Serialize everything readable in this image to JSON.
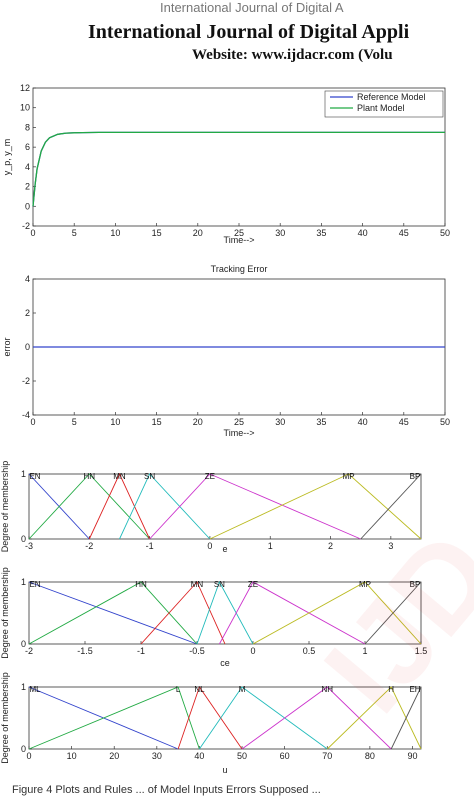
{
  "header": {
    "journal_banner": "International Journal of Digital A",
    "title": "International Journal of Digital Appli",
    "website": "Website: www.ijdacr.com (Volu"
  },
  "caption": "Figure 4 Plots and Rules ... of Model Inputs Errors Supposed ...",
  "chart_data": [
    {
      "type": "line",
      "title": "",
      "xlabel": "Time-->",
      "ylabel": "y_p, y_m",
      "xlim": [
        0,
        50
      ],
      "ylim": [
        -2,
        12
      ],
      "xticks": [
        0,
        5,
        10,
        15,
        20,
        25,
        30,
        35,
        40,
        45,
        50
      ],
      "yticks": [
        -2,
        0,
        2,
        4,
        6,
        8,
        10,
        12
      ],
      "legend": "top-right",
      "series": [
        {
          "name": "Reference Model",
          "color": "#3344cc",
          "x": [
            0,
            0.25,
            0.5,
            1,
            1.5,
            2,
            3,
            4,
            5,
            6,
            8,
            10,
            50
          ],
          "y": [
            0,
            2.2,
            3.8,
            5.6,
            6.5,
            6.95,
            7.3,
            7.42,
            7.46,
            7.48,
            7.5,
            7.5,
            7.5
          ]
        },
        {
          "name": "Plant Model",
          "color": "#22aa44",
          "x": [
            0,
            0.25,
            0.5,
            1,
            1.5,
            2,
            3,
            4,
            5,
            6,
            8,
            10,
            50
          ],
          "y": [
            0,
            2.2,
            3.8,
            5.6,
            6.5,
            6.95,
            7.3,
            7.42,
            7.46,
            7.48,
            7.5,
            7.5,
            7.5
          ]
        }
      ]
    },
    {
      "type": "line",
      "title": "Tracking Error",
      "xlabel": "Time-->",
      "ylabel": "error",
      "xlim": [
        0,
        50
      ],
      "ylim": [
        -4,
        4
      ],
      "xticks": [
        0,
        5,
        10,
        15,
        20,
        25,
        30,
        35,
        40,
        45,
        50
      ],
      "yticks": [
        -4,
        -2,
        0,
        2,
        4
      ],
      "series": [
        {
          "color": "#3344cc",
          "x": [
            0,
            50
          ],
          "y": [
            0,
            0
          ]
        }
      ]
    },
    {
      "type": "line",
      "title": "",
      "xlabel": "e",
      "ylabel": "Degree of membership",
      "xlim": [
        -3,
        3.5
      ],
      "ylim": [
        0,
        1
      ],
      "xticks": [
        -3,
        -2,
        -1,
        0,
        1,
        2,
        3
      ],
      "series": [
        {
          "name": "EN",
          "color": "#3344cc",
          "x": [
            -3,
            -2
          ],
          "y": [
            1,
            0
          ]
        },
        {
          "name": "HN",
          "color": "#22aa44",
          "x": [
            -3,
            -2,
            -1
          ],
          "y": [
            0,
            1,
            0
          ]
        },
        {
          "name": "MN",
          "color": "#dd2222",
          "x": [
            -2,
            -1.5,
            -1
          ],
          "y": [
            0,
            1,
            0
          ]
        },
        {
          "name": "SN",
          "color": "#22bbbb",
          "x": [
            -1.5,
            -1,
            0
          ],
          "y": [
            0,
            1,
            0
          ]
        },
        {
          "name": "ZE",
          "color": "#cc33cc",
          "x": [
            -1,
            0,
            2.5
          ],
          "y": [
            0,
            1,
            0
          ]
        },
        {
          "name": "MP",
          "color": "#bbbb22",
          "x": [
            0,
            2.3,
            3.5
          ],
          "y": [
            0,
            1,
            0
          ]
        },
        {
          "name": "BP",
          "color": "#555555",
          "x": [
            2.5,
            3.5
          ],
          "y": [
            0,
            1
          ]
        }
      ]
    },
    {
      "type": "line",
      "title": "",
      "xlabel": "ce",
      "ylabel": "Degree of membership",
      "xlim": [
        -2,
        1.5
      ],
      "ylim": [
        0,
        1
      ],
      "xticks": [
        -2,
        -1.5,
        -1,
        -0.5,
        0,
        0.5,
        1,
        1.5
      ],
      "series": [
        {
          "name": "EN",
          "color": "#3344cc",
          "x": [
            -2,
            -0.5
          ],
          "y": [
            1,
            0
          ]
        },
        {
          "name": "HN",
          "color": "#22aa44",
          "x": [
            -2,
            -1,
            -0.5
          ],
          "y": [
            0,
            1,
            0
          ]
        },
        {
          "name": "MN",
          "color": "#dd2222",
          "x": [
            -1,
            -0.5,
            -0.25
          ],
          "y": [
            0,
            1,
            0
          ]
        },
        {
          "name": "SN",
          "color": "#22bbbb",
          "x": [
            -0.5,
            -0.3,
            0
          ],
          "y": [
            0,
            1,
            0
          ]
        },
        {
          "name": "ZE",
          "color": "#cc33cc",
          "x": [
            -0.3,
            0,
            1
          ],
          "y": [
            0,
            1,
            0
          ]
        },
        {
          "name": "MP",
          "color": "#bbbb22",
          "x": [
            0,
            1,
            1.5
          ],
          "y": [
            0,
            1,
            0
          ]
        },
        {
          "name": "BP",
          "color": "#555555",
          "x": [
            1,
            1.5
          ],
          "y": [
            0,
            1
          ]
        }
      ]
    },
    {
      "type": "line",
      "title": "",
      "xlabel": "u",
      "ylabel": "Degree of membership",
      "xlim": [
        0,
        92
      ],
      "ylim": [
        0,
        1
      ],
      "xticks": [
        0,
        10,
        20,
        30,
        40,
        50,
        60,
        70,
        80,
        90
      ],
      "series": [
        {
          "name": "ML",
          "color": "#3344cc",
          "x": [
            0,
            35
          ],
          "y": [
            1,
            0
          ]
        },
        {
          "name": "L",
          "color": "#22aa44",
          "x": [
            0,
            35,
            40
          ],
          "y": [
            0,
            1,
            0
          ]
        },
        {
          "name": "NL",
          "color": "#dd2222",
          "x": [
            35,
            40,
            50
          ],
          "y": [
            0,
            1,
            0
          ]
        },
        {
          "name": "M",
          "color": "#22bbbb",
          "x": [
            40,
            50,
            70
          ],
          "y": [
            0,
            1,
            0
          ]
        },
        {
          "name": "NH",
          "color": "#cc33cc",
          "x": [
            50,
            70,
            85
          ],
          "y": [
            0,
            1,
            0
          ]
        },
        {
          "name": "H",
          "color": "#bbbb22",
          "x": [
            70,
            85,
            92
          ],
          "y": [
            0,
            1,
            0
          ]
        },
        {
          "name": "EH",
          "color": "#555555",
          "x": [
            85,
            92
          ],
          "y": [
            0,
            1
          ]
        }
      ]
    }
  ]
}
